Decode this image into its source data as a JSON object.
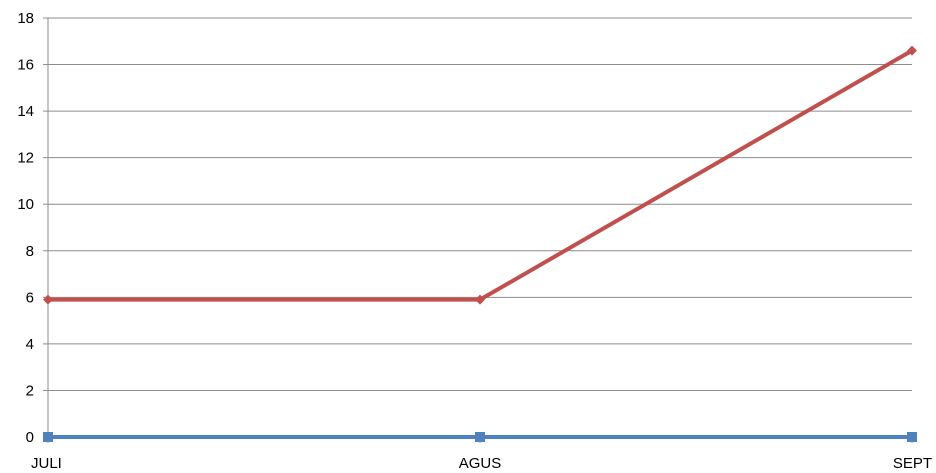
{
  "chart_data": {
    "type": "line",
    "categories": [
      "JULI",
      "AGUS",
      "SEPT"
    ],
    "series": [
      {
        "values": [
          0,
          0,
          0
        ],
        "color": "#4f81bd",
        "marker": "square"
      },
      {
        "values": [
          5.9,
          5.9,
          16.6
        ],
        "color": "#c0504d",
        "marker": "diamond"
      }
    ],
    "ylim": [
      0,
      18
    ],
    "yticks": [
      "0",
      "2",
      "4",
      "6",
      "8",
      "10",
      "12",
      "14",
      "16",
      "18"
    ],
    "grid": true,
    "legend": "none"
  }
}
